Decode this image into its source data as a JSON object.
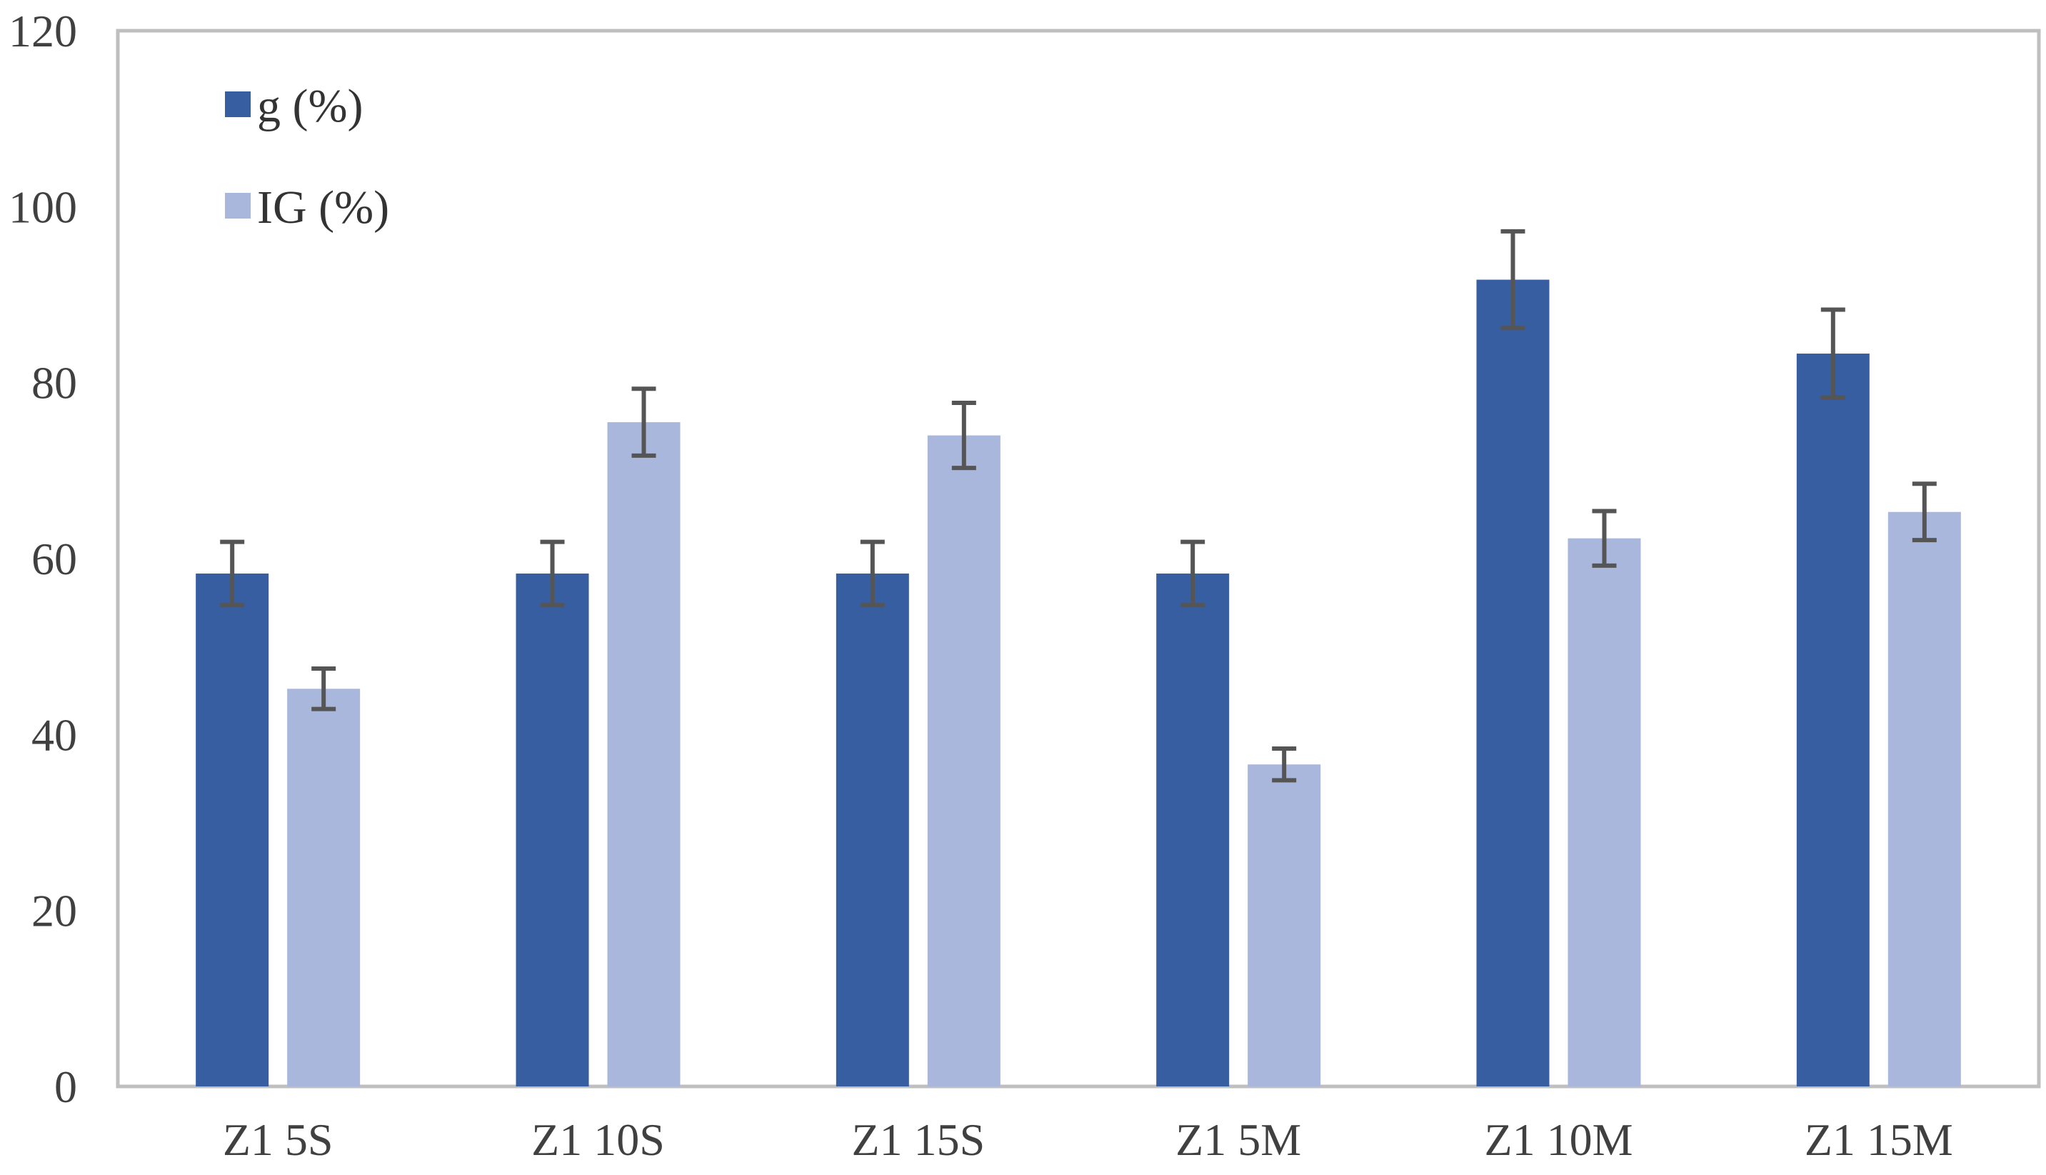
{
  "chart_data": {
    "type": "bar",
    "categories": [
      "Z1 5S",
      "Z1 10S",
      "Z1 15S",
      "Z1 5M",
      "Z1 10M",
      "Z1 15M"
    ],
    "series": [
      {
        "name": "g (%)",
        "color": "#365ea1",
        "values": [
          58.3,
          58.3,
          58.3,
          58.3,
          91.7,
          83.3
        ],
        "errors": [
          3.6,
          3.6,
          3.6,
          3.6,
          5.5,
          5.0
        ]
      },
      {
        "name": "IG (%)",
        "color": "#a8b7db",
        "values": [
          45.2,
          75.5,
          74.0,
          36.6,
          62.3,
          65.3
        ],
        "errors": [
          2.3,
          3.8,
          3.7,
          1.8,
          3.1,
          3.2
        ]
      }
    ],
    "ylim": [
      0,
      120
    ],
    "yticks": [
      0,
      20,
      40,
      60,
      80,
      100,
      120
    ],
    "title": "",
    "xlabel": "",
    "ylabel": "",
    "grid": false,
    "legend_position": "top-left",
    "colors": {
      "axis": "#bfbfbf",
      "error_bar": "#555555",
      "text": "#404040"
    }
  }
}
